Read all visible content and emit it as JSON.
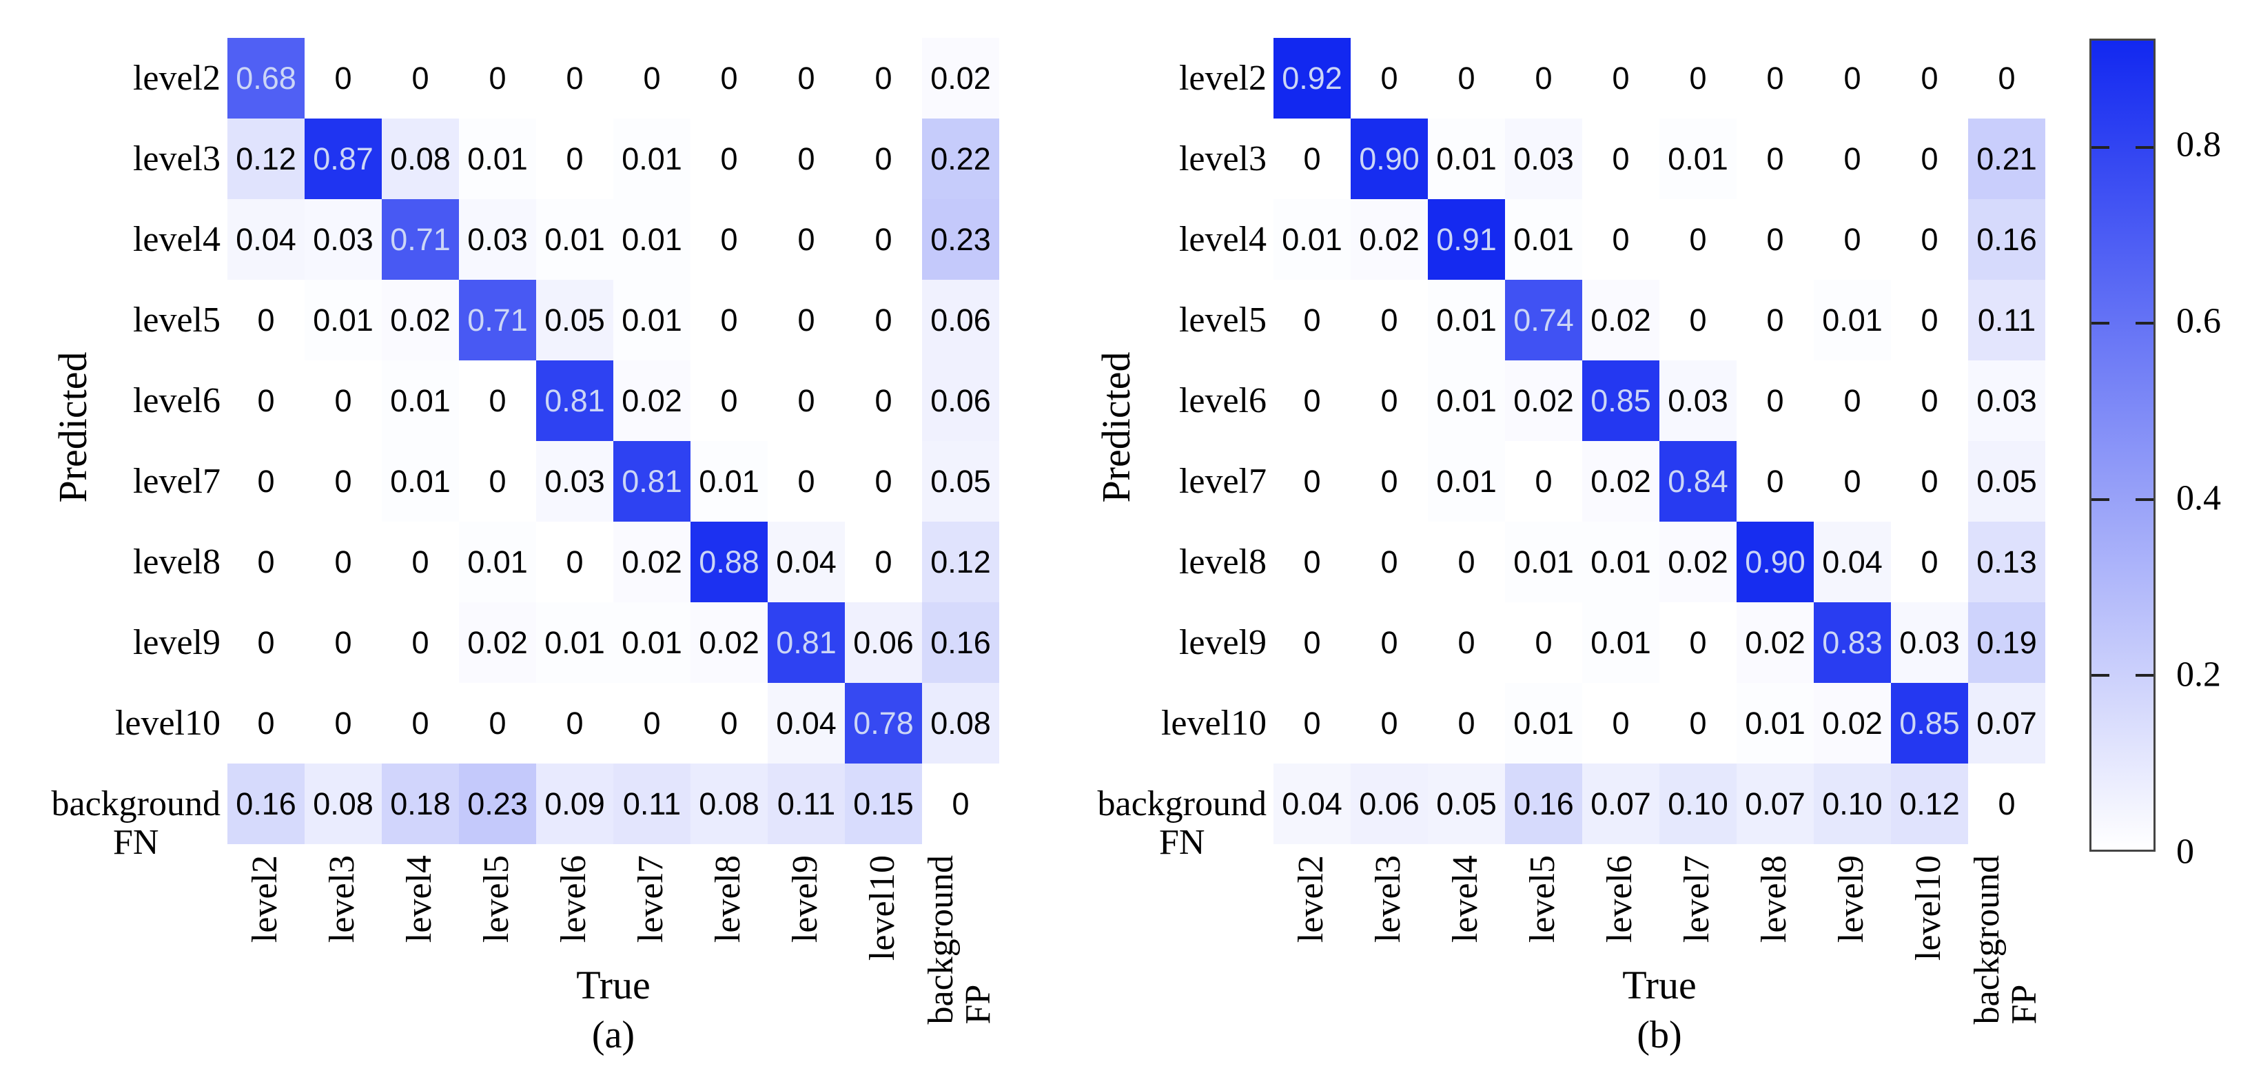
{
  "figure": {
    "background_color": "#FFFFFF",
    "axis_color": "#000000"
  },
  "colors": {
    "heat_max": "#1228F0",
    "heat_min": "#FFFFFF",
    "light_text": "#CCD6F6",
    "dark_text": "#000000",
    "tick_color": "#222222",
    "colorbar_border": "#444444"
  },
  "colorbar": {
    "tick_labels": [
      "0.8",
      "0.6",
      "0.4",
      "0.2",
      "0"
    ],
    "tick_values": [
      0.8,
      0.6,
      0.4,
      0.2,
      0
    ],
    "vmin": 0,
    "vmax": 0.92
  },
  "chart_data": [
    {
      "type": "heatmap",
      "title": "(a)",
      "xlabel": "True",
      "ylabel": "Predicted",
      "row_sublabel": "FN",
      "col_sublabel": "FP",
      "legend_position": "right-colorbar",
      "grid": false,
      "rows": [
        "level2",
        "level3",
        "level4",
        "level5",
        "level6",
        "level7",
        "level8",
        "level9",
        "level10",
        "background"
      ],
      "cols": [
        "level2",
        "level3",
        "level4",
        "level5",
        "level6",
        "level7",
        "level8",
        "level9",
        "level10",
        "background"
      ],
      "vmin": 0,
      "vmax": 0.92,
      "values": [
        [
          "0.68",
          "0",
          "0",
          "0",
          "0",
          "0",
          "0",
          "0",
          "0",
          "0.02"
        ],
        [
          "0.12",
          "0.87",
          "0.08",
          "0.01",
          "0",
          "0.01",
          "0",
          "0",
          "0",
          "0.22"
        ],
        [
          "0.04",
          "0.03",
          "0.71",
          "0.03",
          "0.01",
          "0.01",
          "0",
          "0",
          "0",
          "0.23"
        ],
        [
          "0",
          "0.01",
          "0.02",
          "0.71",
          "0.05",
          "0.01",
          "0",
          "0",
          "0",
          "0.06"
        ],
        [
          "0",
          "0",
          "0.01",
          "0",
          "0.81",
          "0.02",
          "0",
          "0",
          "0",
          "0.06"
        ],
        [
          "0",
          "0",
          "0.01",
          "0",
          "0.03",
          "0.81",
          "0.01",
          "0",
          "0",
          "0.05"
        ],
        [
          "0",
          "0",
          "0",
          "0.01",
          "0",
          "0.02",
          "0.88",
          "0.04",
          "0",
          "0.12"
        ],
        [
          "0",
          "0",
          "0",
          "0.02",
          "0.01",
          "0.01",
          "0.02",
          "0.81",
          "0.06",
          "0.16"
        ],
        [
          "0",
          "0",
          "0",
          "0",
          "0",
          "0",
          "0",
          "0.04",
          "0.78",
          "0.08"
        ],
        [
          "0.16",
          "0.08",
          "0.18",
          "0.23",
          "0.09",
          "0.11",
          "0.08",
          "0.11",
          "0.15",
          "0"
        ]
      ]
    },
    {
      "type": "heatmap",
      "title": "(b)",
      "xlabel": "True",
      "ylabel": "Predicted",
      "row_sublabel": "FN",
      "col_sublabel": "FP",
      "legend_position": "right-colorbar",
      "grid": false,
      "rows": [
        "level2",
        "level3",
        "level4",
        "level5",
        "level6",
        "level7",
        "level8",
        "level9",
        "level10",
        "background"
      ],
      "cols": [
        "level2",
        "level3",
        "level4",
        "level5",
        "level6",
        "level7",
        "level8",
        "level9",
        "level10",
        "background"
      ],
      "vmin": 0,
      "vmax": 0.92,
      "values": [
        [
          "0.92",
          "0",
          "0",
          "0",
          "0",
          "0",
          "0",
          "0",
          "0",
          "0"
        ],
        [
          "0",
          "0.90",
          "0.01",
          "0.03",
          "0",
          "0.01",
          "0",
          "0",
          "0",
          "0.21"
        ],
        [
          "0.01",
          "0.02",
          "0.91",
          "0.01",
          "0",
          "0",
          "0",
          "0",
          "0",
          "0.16"
        ],
        [
          "0",
          "0",
          "0.01",
          "0.74",
          "0.02",
          "0",
          "0",
          "0.01",
          "0",
          "0.11"
        ],
        [
          "0",
          "0",
          "0.01",
          "0.02",
          "0.85",
          "0.03",
          "0",
          "0",
          "0",
          "0.03"
        ],
        [
          "0",
          "0",
          "0.01",
          "0",
          "0.02",
          "0.84",
          "0",
          "0",
          "0",
          "0.05"
        ],
        [
          "0",
          "0",
          "0",
          "0.01",
          "0.01",
          "0.02",
          "0.90",
          "0.04",
          "0",
          "0.13"
        ],
        [
          "0",
          "0",
          "0",
          "0",
          "0.01",
          "0",
          "0.02",
          "0.83",
          "0.03",
          "0.19"
        ],
        [
          "0",
          "0",
          "0",
          "0.01",
          "0",
          "0",
          "0.01",
          "0.02",
          "0.85",
          "0.07"
        ],
        [
          "0.04",
          "0.06",
          "0.05",
          "0.16",
          "0.07",
          "0.10",
          "0.07",
          "0.10",
          "0.12",
          "0"
        ]
      ]
    }
  ]
}
